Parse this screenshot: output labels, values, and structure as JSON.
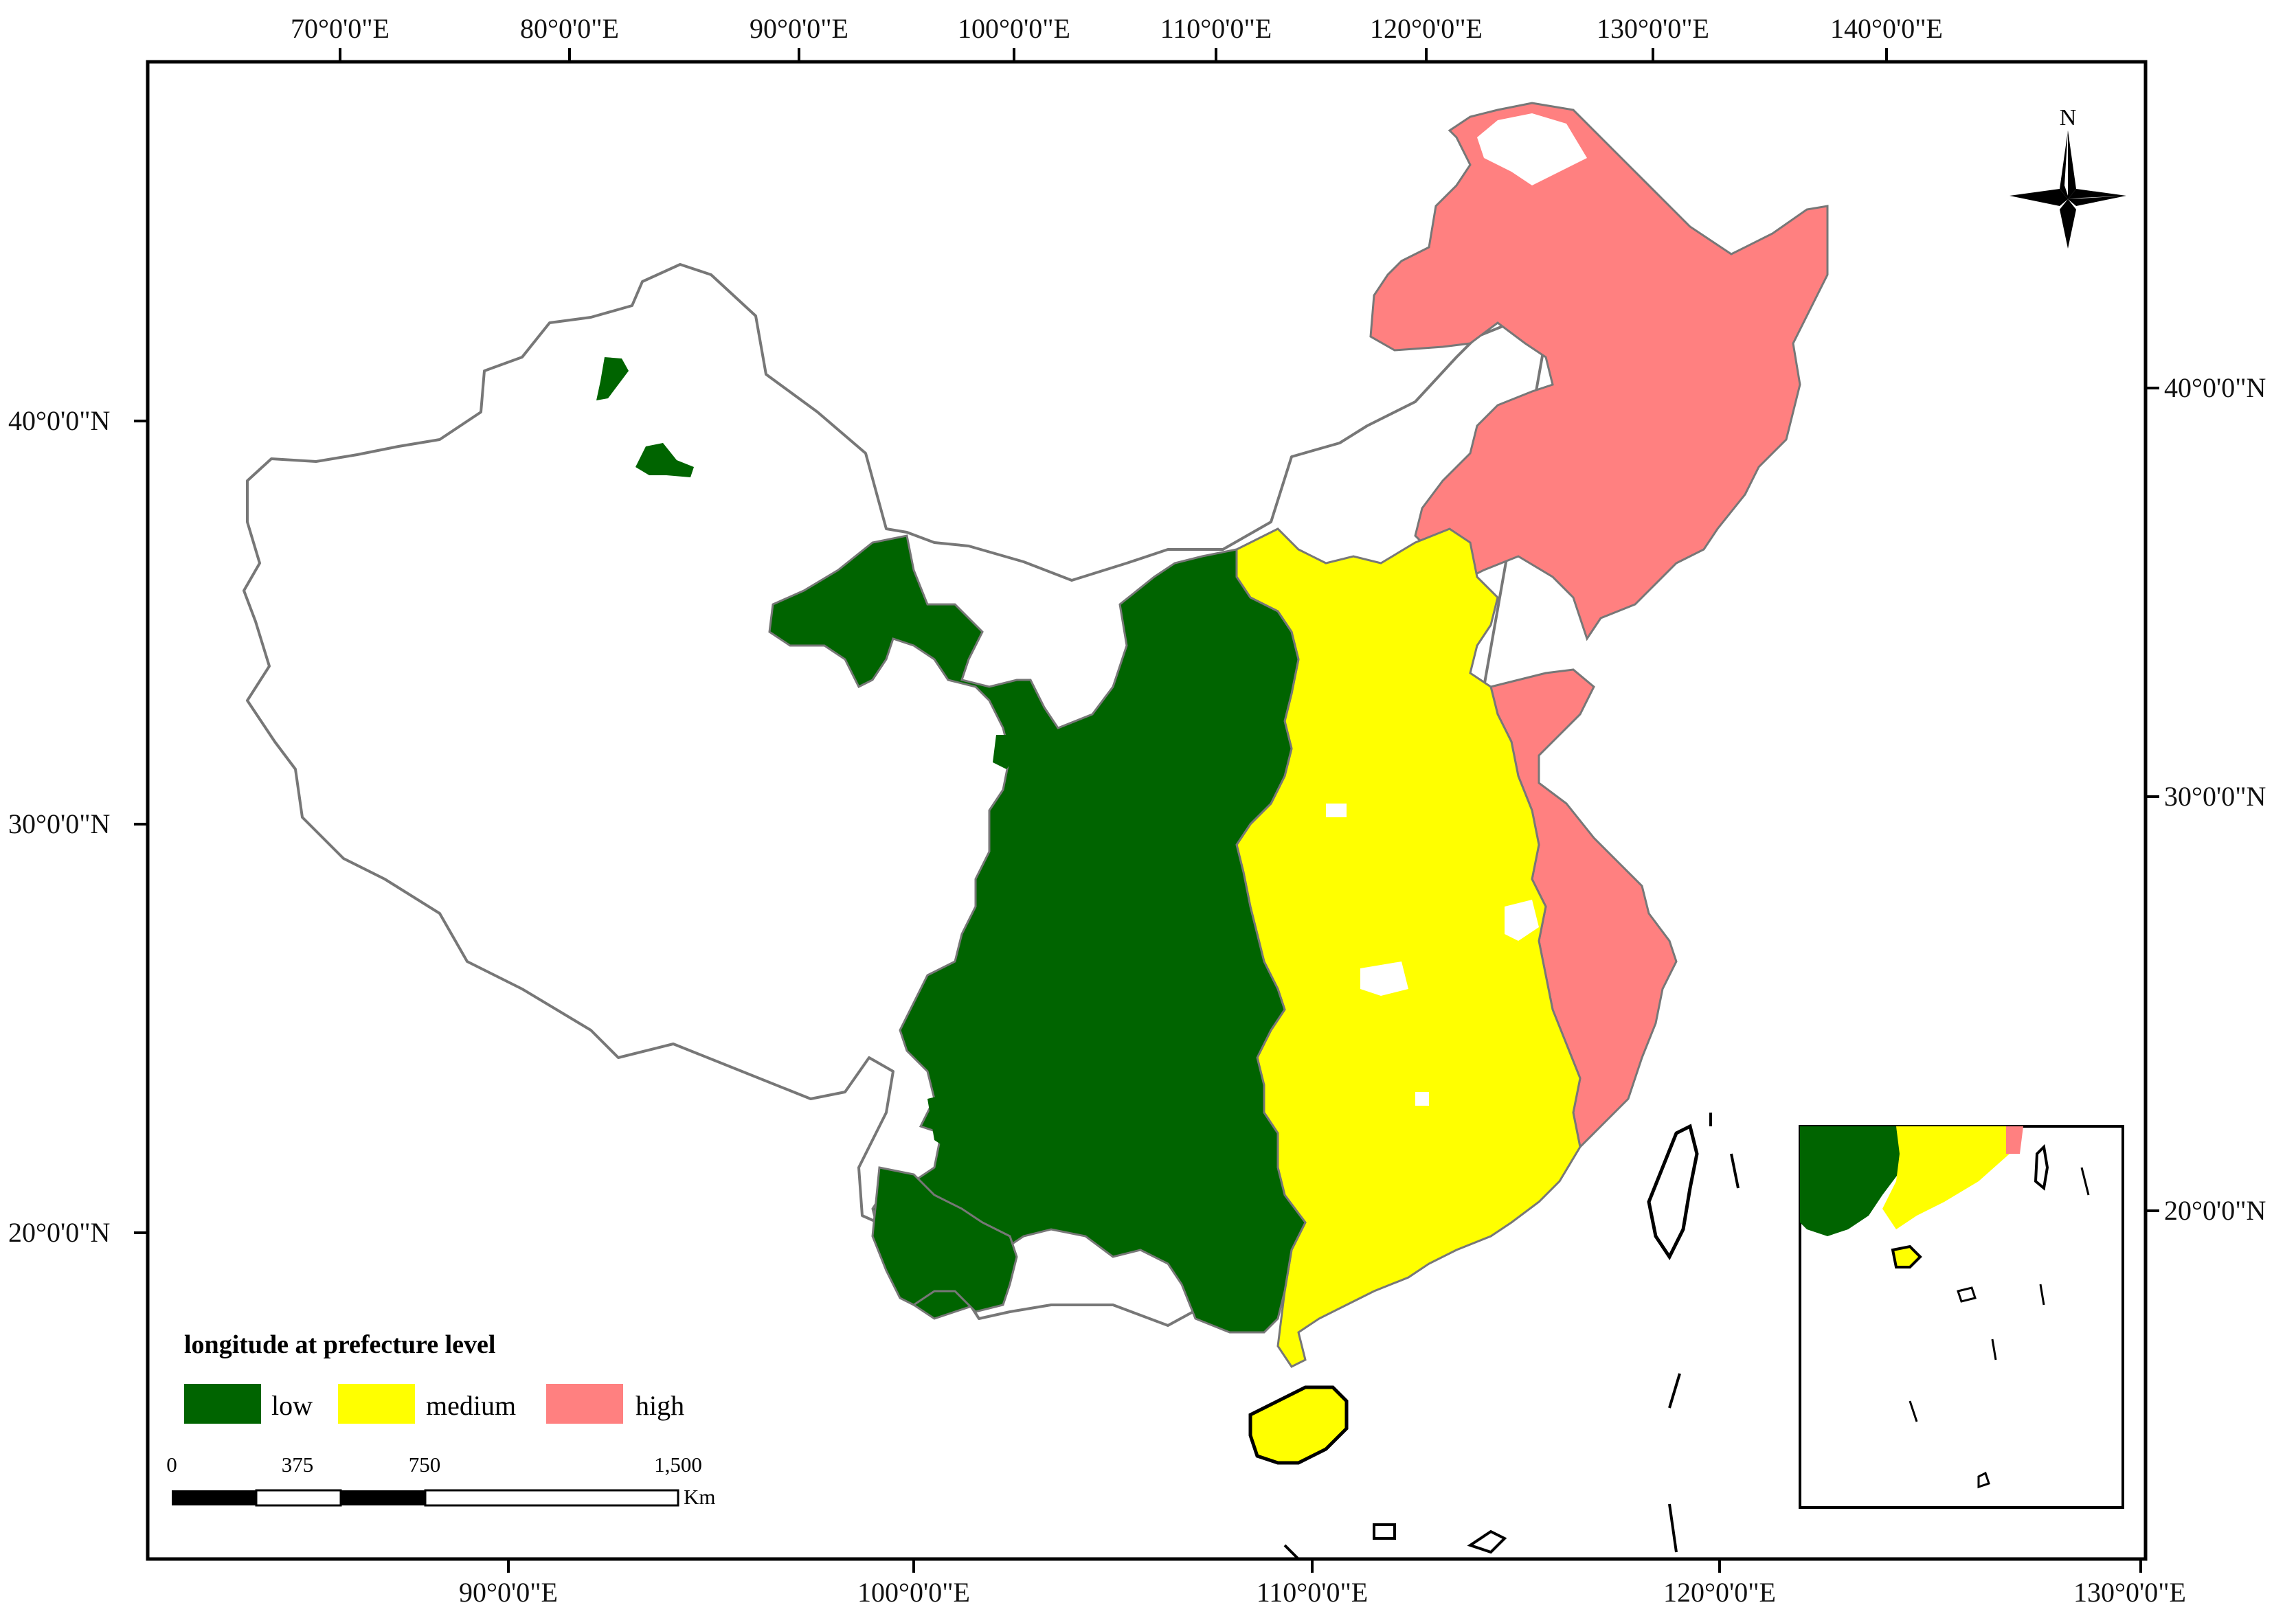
{
  "colors": {
    "low": "#006400",
    "medium": "#ffff00",
    "high": "#ff8080",
    "boundary": "#777777",
    "frame": "#000000"
  },
  "axes": {
    "top_labels": [
      "70°0'0\"E",
      "80°0'0\"E",
      "90°0'0\"E",
      "100°0'0\"E",
      "110°0'0\"E",
      "120°0'0\"E",
      "130°0'0\"E",
      "140°0'0\"E"
    ],
    "bottom_labels": [
      "90°0'0\"E",
      "100°0'0\"E",
      "110°0'0\"E",
      "120°0'0\"E",
      "130°0'0\"E"
    ],
    "left_labels": [
      "40°0'0\"N",
      "30°0'0\"N",
      "20°0'0\"N"
    ],
    "right_labels": [
      "40°0'0\"N",
      "30°0'0\"N",
      "20°0'0\"N"
    ]
  },
  "north_arrow": {
    "label": "N",
    "icon": "compass-rose-icon"
  },
  "legend": {
    "title": "longitude at prefecture level",
    "items": [
      {
        "label": "low",
        "color_key": "low"
      },
      {
        "label": "medium",
        "color_key": "medium"
      },
      {
        "label": "high",
        "color_key": "high"
      }
    ]
  },
  "scale_bar": {
    "ticks": [
      "0",
      "375",
      "750",
      "1,500"
    ],
    "unit": "Km"
  }
}
